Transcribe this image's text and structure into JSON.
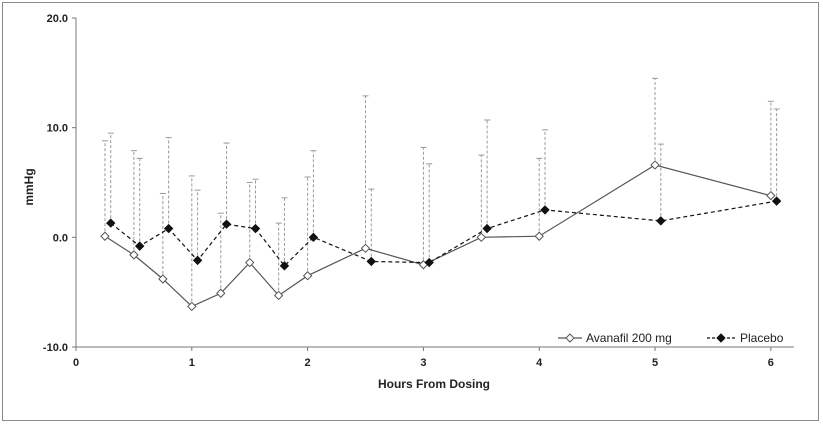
{
  "chart_data": {
    "type": "line",
    "xlabel": "Hours From Dosing",
    "ylabel": "mmHg",
    "xlim": [
      0,
      6.2
    ],
    "ylim": [
      -10,
      20
    ],
    "xticks": [
      "0",
      "1",
      "2",
      "3",
      "4",
      "5",
      "6"
    ],
    "yticks": [
      "-10.0",
      "0.0",
      "10.0",
      "20.0"
    ],
    "legend_position": "bottom-right",
    "grid": false,
    "series": [
      {
        "name": "Avanafil 200 mg",
        "line_style": "solid",
        "marker": "open-diamond",
        "color": "#555555",
        "x": [
          0.25,
          0.5,
          0.75,
          1.0,
          1.25,
          1.5,
          1.75,
          2.0,
          2.5,
          3.0,
          3.5,
          4.0,
          5.0,
          6.0
        ],
        "y": [
          0.1,
          -1.6,
          -3.8,
          -6.3,
          -5.1,
          -2.3,
          -5.3,
          -3.5,
          -1.0,
          -2.5,
          0.0,
          0.1,
          6.6,
          3.8
        ],
        "error_upper": [
          8.8,
          7.9,
          4.0,
          5.6,
          2.2,
          5.0,
          1.3,
          5.5,
          12.9,
          8.2,
          7.5,
          7.2,
          14.5,
          12.4
        ]
      },
      {
        "name": "Placebo",
        "line_style": "dashed",
        "marker": "filled-diamond",
        "color": "#111111",
        "x": [
          0.3,
          0.55,
          0.8,
          1.05,
          1.3,
          1.55,
          1.8,
          2.05,
          2.55,
          3.05,
          3.55,
          4.05,
          5.05,
          6.05
        ],
        "y": [
          1.3,
          -0.8,
          0.8,
          -2.1,
          1.2,
          0.8,
          -2.6,
          0.0,
          -2.2,
          -2.3,
          0.8,
          2.5,
          1.5,
          3.3
        ],
        "error_upper": [
          9.5,
          7.2,
          9.1,
          4.3,
          8.6,
          5.3,
          3.6,
          7.9,
          4.4,
          6.7,
          10.7,
          9.8,
          8.5,
          11.7
        ]
      }
    ]
  }
}
